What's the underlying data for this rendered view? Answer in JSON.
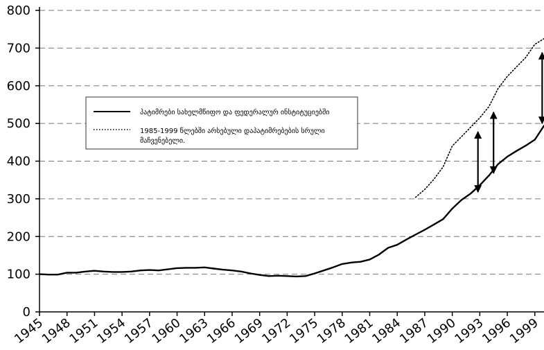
{
  "chart_data": {
    "type": "line",
    "title": "",
    "xlabel": "",
    "ylabel": "",
    "xlim": [
      1945,
      2000
    ],
    "ylim": [
      0,
      800
    ],
    "grid": "horizontal dashed",
    "x_ticks": [
      "1945",
      "1948",
      "1951",
      "1954",
      "1957",
      "1960",
      "1963",
      "1966",
      "1969",
      "1972",
      "1975",
      "1978",
      "1981",
      "1984",
      "1987",
      "1990",
      "1993",
      "1996",
      "1999"
    ],
    "x_tick_values": [
      1945,
      1948,
      1951,
      1954,
      1957,
      1960,
      1963,
      1966,
      1969,
      1972,
      1975,
      1978,
      1981,
      1984,
      1987,
      1990,
      1993,
      1996,
      1999
    ],
    "y_ticks": [
      "0",
      "100",
      "200",
      "300",
      "400",
      "500",
      "600",
      "700",
      "800"
    ],
    "y_tick_values": [
      0,
      100,
      200,
      300,
      400,
      500,
      600,
      700,
      800
    ],
    "legend": {
      "placement": "center-left",
      "entries": [
        {
          "label": "პატიმრები სახელმწიფო და ფედერალურ ინსტიტუციებში",
          "style": "solid"
        },
        {
          "label_line1": "1985-1999 წლებში არსებული დაპატიმრებების სრული",
          "label_line2": "მაჩვენებელი.",
          "style": "dotted"
        }
      ]
    },
    "series": [
      {
        "name": "პატიმრები სახელმწიფო და ფედერალურ ინსტიტუციებში",
        "style": "solid",
        "color": "#000000",
        "x": [
          1945,
          1946,
          1947,
          1948,
          1949,
          1950,
          1951,
          1952,
          1953,
          1954,
          1955,
          1956,
          1957,
          1958,
          1959,
          1960,
          1961,
          1962,
          1963,
          1964,
          1965,
          1966,
          1967,
          1968,
          1969,
          1970,
          1971,
          1972,
          1973,
          1974,
          1975,
          1976,
          1977,
          1978,
          1979,
          1980,
          1981,
          1982,
          1983,
          1984,
          1985,
          1986,
          1987,
          1988,
          1989,
          1990,
          1991,
          1992,
          1993,
          1994,
          1995,
          1996,
          1997,
          1998,
          1999,
          2000
        ],
        "y": [
          100,
          99,
          99,
          104,
          104,
          107,
          109,
          107,
          106,
          106,
          107,
          110,
          111,
          110,
          113,
          116,
          117,
          117,
          118,
          115,
          112,
          110,
          107,
          102,
          98,
          95,
          96,
          95,
          94,
          95,
          102,
          110,
          118,
          127,
          131,
          133,
          139,
          152,
          170,
          178,
          192,
          205,
          218,
          232,
          246,
          274,
          297,
          314,
          336,
          362,
          392,
          412,
          427,
          441,
          457,
          494
        ]
      },
      {
        "name": "1985-1999 წლებში არსებული დაპატიმრებების სრული მაჩვენებელი.",
        "style": "dotted",
        "color": "#000000",
        "x": [
          1986,
          1987,
          1988,
          1989,
          1990,
          1991,
          1992,
          1993,
          1994,
          1995,
          1996,
          1997,
          1998,
          1999,
          2000
        ],
        "y": [
          304,
          325,
          352,
          385,
          440,
          465,
          490,
          515,
          545,
          593,
          625,
          650,
          675,
          710,
          725
        ]
      }
    ],
    "annotations": [
      {
        "type": "double-arrow",
        "x": 1992.8,
        "y_from": 318,
        "y_to": 478
      },
      {
        "type": "double-arrow",
        "x": 1994.5,
        "y_from": 368,
        "y_to": 530
      },
      {
        "type": "double-arrow",
        "x": 1999.8,
        "y_from": 500,
        "y_to": 688
      }
    ]
  }
}
